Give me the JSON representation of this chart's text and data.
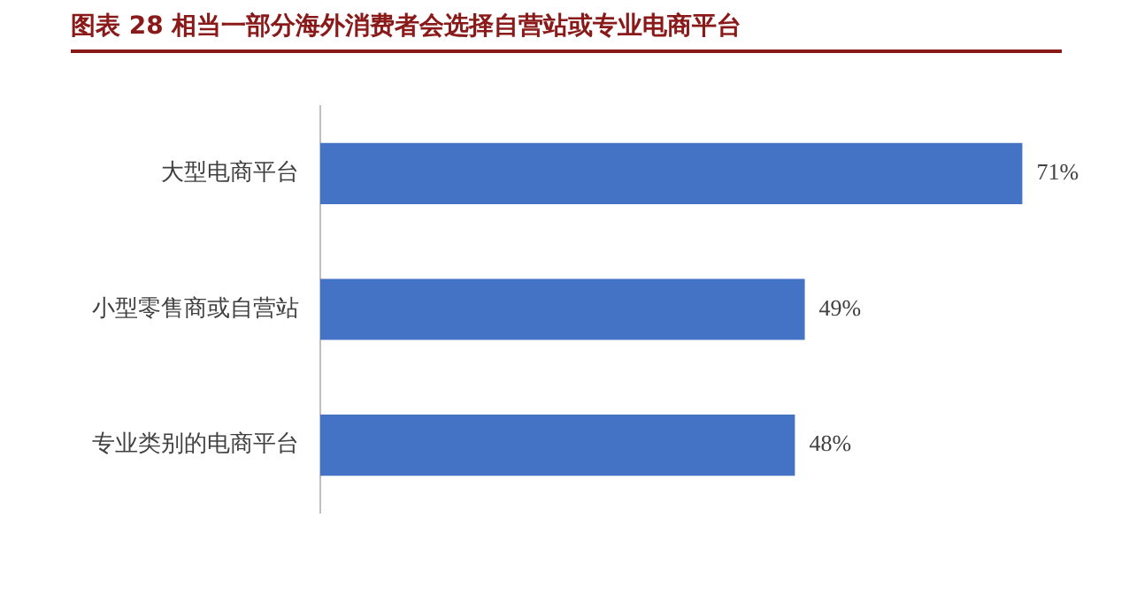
{
  "chart_data": {
    "type": "bar",
    "title": "图表 28 相当一部分海外消费者会选择自营站或专业电商平台",
    "orientation": "horizontal",
    "categories": [
      "大型电商平台",
      "小型零售商或自营站",
      "专业类别的电商平台"
    ],
    "values": [
      71,
      49,
      48
    ],
    "value_labels": [
      "71%",
      "49%",
      "48%"
    ],
    "color": "#4472c4"
  }
}
